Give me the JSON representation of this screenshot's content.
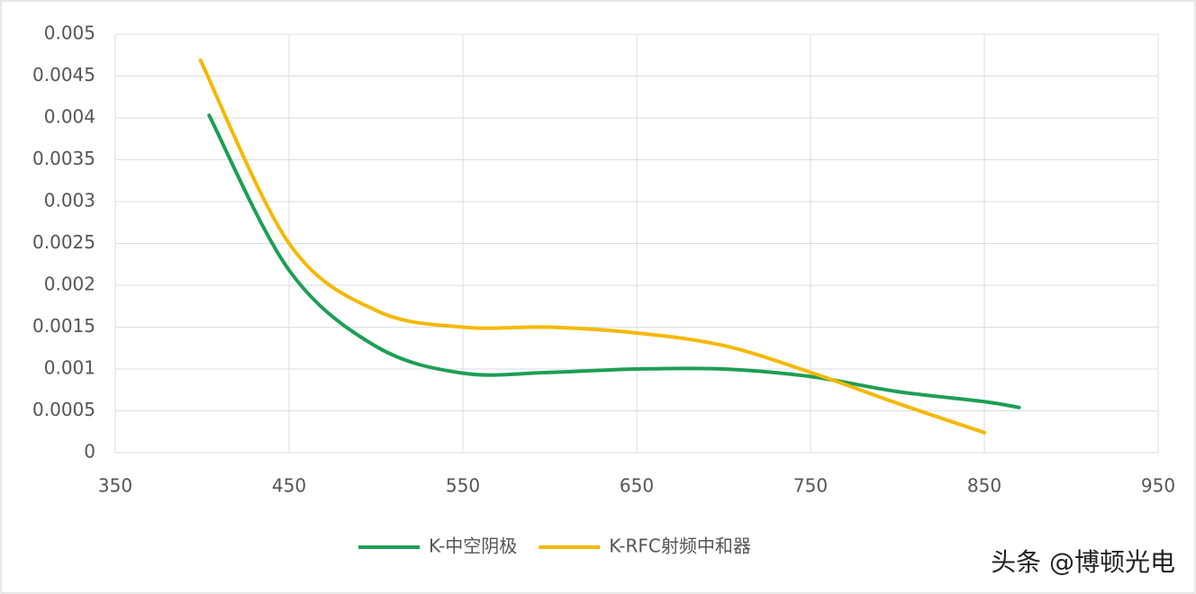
{
  "chart_data": {
    "type": "line",
    "xlim": [
      350,
      950
    ],
    "xticks": [
      350,
      450,
      550,
      650,
      750,
      850,
      950
    ],
    "ylim": [
      0,
      0.005
    ],
    "yticks": [
      0,
      0.0005,
      0.001,
      0.0015,
      0.002,
      0.0025,
      0.003,
      0.0035,
      0.004,
      0.0045,
      0.005
    ],
    "grid": true,
    "legend": "bottom",
    "smooth": true,
    "series": [
      {
        "name": "K-中空阴极",
        "color": "#1e9e55",
        "x": [
          404,
          450,
          500,
          550,
          600,
          650,
          700,
          750,
          800,
          850,
          870
        ],
        "values": [
          0.00403,
          0.00218,
          0.00127,
          0.00095,
          0.00096,
          0.001,
          0.001,
          0.00091,
          0.00073,
          0.00061,
          0.00054
        ]
      },
      {
        "name": "K-RFC射频中和器",
        "color": "#f5b800",
        "x": [
          399,
          450,
          500,
          550,
          600,
          650,
          700,
          750,
          800,
          850
        ],
        "values": [
          0.00469,
          0.0025,
          0.0017,
          0.0015,
          0.0015,
          0.00143,
          0.00128,
          0.00096,
          0.00059,
          0.00024
        ]
      }
    ]
  },
  "watermark": "头条 @博顿光电"
}
